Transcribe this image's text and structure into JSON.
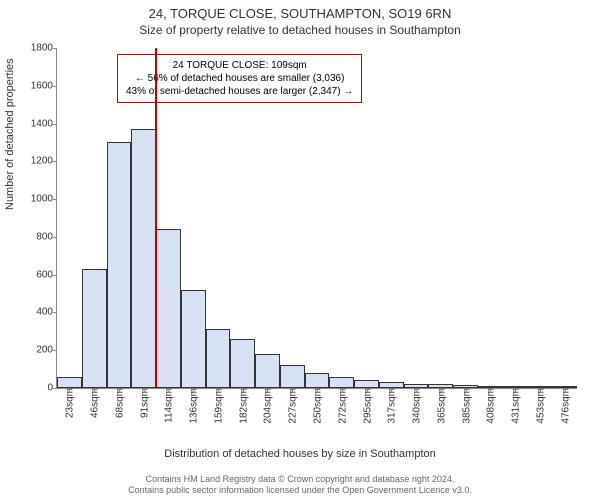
{
  "title": "24, TORQUE CLOSE, SOUTHAMPTON, SO19 6RN",
  "subtitle": "Size of property relative to detached houses in Southampton",
  "ylabel": "Number of detached properties",
  "xlabel": "Distribution of detached houses by size in Southampton",
  "footer_line1": "Contains HM Land Registry data © Crown copyright and database right 2024.",
  "footer_line2": "Contains public sector information licensed under the Open Government Licence v3.0.",
  "chart": {
    "type": "histogram",
    "ylim": [
      0,
      1800
    ],
    "ytick_step": 200,
    "yticks": [
      0,
      200,
      400,
      600,
      800,
      1000,
      1200,
      1400,
      1600,
      1800
    ],
    "xticks": [
      "23sqm",
      "46sqm",
      "68sqm",
      "91sqm",
      "114sqm",
      "136sqm",
      "159sqm",
      "182sqm",
      "204sqm",
      "227sqm",
      "250sqm",
      "272sqm",
      "295sqm",
      "317sqm",
      "340sqm",
      "365sqm",
      "385sqm",
      "408sqm",
      "431sqm",
      "453sqm",
      "476sqm"
    ],
    "bar_values": [
      60,
      630,
      1300,
      1370,
      840,
      520,
      310,
      260,
      180,
      120,
      80,
      60,
      40,
      30,
      20,
      20,
      15,
      10,
      5,
      5,
      3
    ],
    "bar_fill": "#d6e2f3",
    "bar_stroke": "#333333",
    "background": "#ffffff",
    "marker_index": 4,
    "marker_color": "#c00000",
    "annotation": {
      "line1": "24 TORQUE CLOSE: 109sqm",
      "line2": "← 56% of detached houses are smaller (3,036)",
      "line3": "43% of semi-detached houses are larger (2,347) →",
      "border_color": "#c00000"
    }
  }
}
